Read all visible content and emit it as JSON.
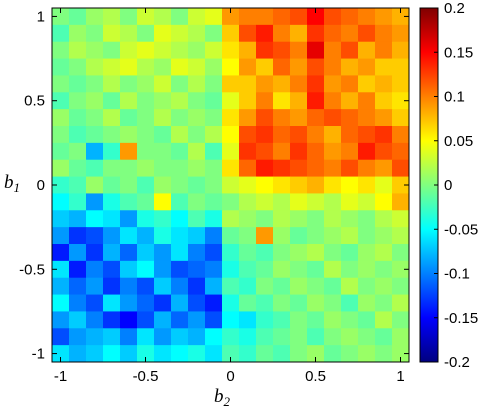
{
  "chart_data": {
    "type": "heatmap",
    "title": "",
    "xlabel": {
      "main": "b",
      "sub": "2"
    },
    "ylabel": {
      "main": "b",
      "sub": "1"
    },
    "xlim": [
      -1.05,
      1.05
    ],
    "ylim": [
      -1.05,
      1.05
    ],
    "x_ticks": [
      -1,
      -0.5,
      0,
      0.5,
      1
    ],
    "x_tick_labels": [
      "-1",
      "-0.5",
      "0",
      "0.5",
      "1"
    ],
    "y_ticks": [
      -1,
      -0.5,
      0,
      0.5,
      1
    ],
    "y_tick_labels": [
      "-1",
      "-0.5",
      "0",
      "0.5",
      "1"
    ],
    "colorbar": {
      "range": [
        -0.2,
        0.2
      ],
      "ticks": [
        0.2,
        0.15,
        0.1,
        0.05,
        0,
        -0.05,
        -0.1,
        -0.15,
        -0.2
      ],
      "tick_labels": [
        "0.2",
        "0.15",
        "0.1",
        "0.05",
        "0",
        "-0.05",
        "-0.1",
        "-0.15",
        "-0.2"
      ],
      "colormap": "jet"
    },
    "grid": false,
    "x_centers": [
      -1,
      -0.9,
      -0.8,
      -0.7,
      -0.6,
      -0.5,
      -0.4,
      -0.3,
      -0.2,
      -0.1,
      0,
      0.1,
      0.2,
      0.3,
      0.4,
      0.5,
      0.6,
      0.7,
      0.8,
      0.9,
      1
    ],
    "y_centers": [
      1,
      0.9,
      0.8,
      0.7,
      0.6,
      0.5,
      0.4,
      0.3,
      0.2,
      0.1,
      0,
      -0.1,
      -0.2,
      -0.3,
      -0.4,
      -0.5,
      -0.6,
      -0.7,
      -0.8,
      -0.9,
      -1
    ],
    "values": [
      [
        0.0,
        -0.01,
        0.01,
        0.02,
        0.0,
        0.03,
        0.02,
        0.0,
        0.03,
        0.04,
        0.09,
        0.1,
        0.1,
        0.11,
        0.12,
        0.15,
        0.12,
        0.11,
        0.1,
        0.09,
        0.08
      ],
      [
        -0.02,
        0.01,
        0.0,
        0.03,
        0.02,
        0.0,
        0.04,
        0.03,
        0.02,
        0.0,
        0.07,
        0.12,
        0.14,
        0.1,
        0.08,
        0.13,
        0.11,
        0.1,
        0.12,
        0.1,
        0.09
      ],
      [
        0.0,
        0.02,
        0.01,
        0.0,
        0.03,
        0.04,
        0.03,
        0.02,
        0.01,
        0.03,
        0.06,
        0.08,
        0.13,
        0.12,
        0.1,
        0.16,
        0.1,
        0.12,
        0.08,
        0.1,
        0.08
      ],
      [
        -0.01,
        0.0,
        0.02,
        0.03,
        0.04,
        0.02,
        0.01,
        0.04,
        0.03,
        0.01,
        0.05,
        0.09,
        0.07,
        0.11,
        0.09,
        0.12,
        0.1,
        0.08,
        0.09,
        0.07,
        0.07
      ],
      [
        0.0,
        -0.01,
        0.0,
        0.02,
        0.0,
        0.01,
        0.03,
        0.0,
        0.02,
        0.0,
        0.07,
        0.07,
        0.09,
        0.08,
        0.1,
        0.13,
        0.09,
        0.1,
        0.07,
        0.08,
        0.07
      ],
      [
        -0.02,
        0.0,
        0.01,
        -0.01,
        0.02,
        0.0,
        0.01,
        0.02,
        0.0,
        -0.01,
        0.04,
        0.07,
        0.1,
        0.06,
        0.08,
        0.14,
        0.1,
        0.08,
        0.1,
        0.07,
        0.06
      ],
      [
        0.01,
        -0.01,
        0.0,
        0.02,
        -0.01,
        0.0,
        0.02,
        0.0,
        0.01,
        0.0,
        0.06,
        0.09,
        0.12,
        0.1,
        0.09,
        0.11,
        0.12,
        0.11,
        0.1,
        0.09,
        0.07
      ],
      [
        0.0,
        -0.02,
        -0.01,
        0.0,
        0.01,
        0.0,
        -0.01,
        0.02,
        0.0,
        0.02,
        0.05,
        0.12,
        0.13,
        0.11,
        0.12,
        0.1,
        0.08,
        0.11,
        0.12,
        0.13,
        0.1
      ],
      [
        -0.01,
        0.0,
        -0.08,
        -0.03,
        0.09,
        0.0,
        0.0,
        -0.01,
        0.02,
        -0.02,
        0.04,
        0.13,
        0.12,
        0.1,
        0.13,
        0.11,
        0.09,
        0.1,
        0.14,
        0.12,
        0.11
      ],
      [
        0.01,
        -0.01,
        -0.02,
        0.0,
        0.0,
        0.01,
        0.0,
        0.0,
        0.01,
        0.0,
        0.06,
        0.11,
        0.14,
        0.13,
        0.12,
        0.11,
        0.1,
        0.12,
        0.1,
        0.09,
        0.12
      ],
      [
        -0.03,
        -0.02,
        0.01,
        -0.01,
        0.0,
        -0.02,
        0.01,
        0.0,
        -0.01,
        0.0,
        0.03,
        0.04,
        0.05,
        0.06,
        0.07,
        0.08,
        0.06,
        0.05,
        0.06,
        0.04,
        0.07
      ],
      [
        -0.05,
        -0.03,
        -0.09,
        -0.04,
        -0.02,
        -0.01,
        0.05,
        -0.02,
        0.0,
        -0.01,
        0.0,
        0.02,
        0.03,
        0.02,
        0.04,
        0.03,
        0.02,
        0.04,
        0.03,
        0.05,
        0.08
      ],
      [
        -0.07,
        -0.08,
        -0.05,
        -0.06,
        -0.09,
        -0.04,
        -0.03,
        -0.05,
        -0.02,
        -0.04,
        0.02,
        0.01,
        0.0,
        0.02,
        0.01,
        0.0,
        0.02,
        0.01,
        0.0,
        0.02,
        0.03
      ],
      [
        -0.09,
        -0.13,
        -0.12,
        -0.09,
        -0.06,
        -0.08,
        -0.04,
        -0.06,
        -0.07,
        -0.1,
        -0.01,
        0.0,
        0.09,
        0.01,
        -0.01,
        0.0,
        0.01,
        0.02,
        0.0,
        0.01,
        0.02
      ],
      [
        -0.14,
        -0.09,
        -0.13,
        -0.08,
        -0.11,
        -0.07,
        -0.09,
        -0.06,
        -0.1,
        -0.12,
        -0.03,
        -0.01,
        -0.02,
        0.0,
        0.01,
        0.02,
        0.0,
        -0.01,
        0.01,
        0.02,
        0.0
      ],
      [
        -0.06,
        -0.14,
        -0.1,
        -0.12,
        -0.07,
        -0.05,
        -0.09,
        -0.12,
        -0.11,
        -0.1,
        -0.04,
        -0.02,
        -0.01,
        0.01,
        0.0,
        -0.01,
        0.02,
        0.0,
        0.01,
        0.0,
        0.01
      ],
      [
        -0.08,
        -0.11,
        -0.09,
        -0.13,
        -0.1,
        -0.12,
        -0.07,
        -0.1,
        -0.13,
        -0.08,
        -0.02,
        -0.03,
        0.0,
        -0.01,
        0.01,
        0.0,
        -0.01,
        0.02,
        0.0,
        0.01,
        0.0
      ],
      [
        -0.05,
        -0.1,
        -0.12,
        -0.06,
        -0.09,
        -0.11,
        -0.13,
        -0.08,
        -0.12,
        -0.14,
        -0.04,
        -0.01,
        -0.02,
        0.0,
        -0.01,
        0.01,
        0.0,
        -0.02,
        0.01,
        0.0,
        0.02
      ],
      [
        -0.09,
        -0.07,
        -0.1,
        -0.13,
        -0.15,
        -0.12,
        -0.08,
        -0.11,
        -0.09,
        -0.12,
        -0.05,
        -0.06,
        -0.03,
        -0.02,
        0.0,
        -0.01,
        0.01,
        0.0,
        -0.01,
        0.02,
        0.0
      ],
      [
        -0.12,
        -0.09,
        -0.08,
        -0.07,
        -0.1,
        -0.06,
        -0.09,
        -0.07,
        -0.08,
        -0.05,
        -0.03,
        -0.04,
        -0.02,
        -0.01,
        0.0,
        -0.02,
        0.0,
        0.01,
        0.0,
        -0.01,
        0.01
      ],
      [
        -0.06,
        -0.08,
        -0.07,
        -0.05,
        -0.07,
        -0.04,
        -0.06,
        -0.05,
        -0.04,
        -0.06,
        -0.02,
        -0.03,
        -0.01,
        -0.02,
        0.0,
        0.01,
        -0.01,
        0.0,
        0.01,
        0.0,
        0.01
      ]
    ]
  }
}
